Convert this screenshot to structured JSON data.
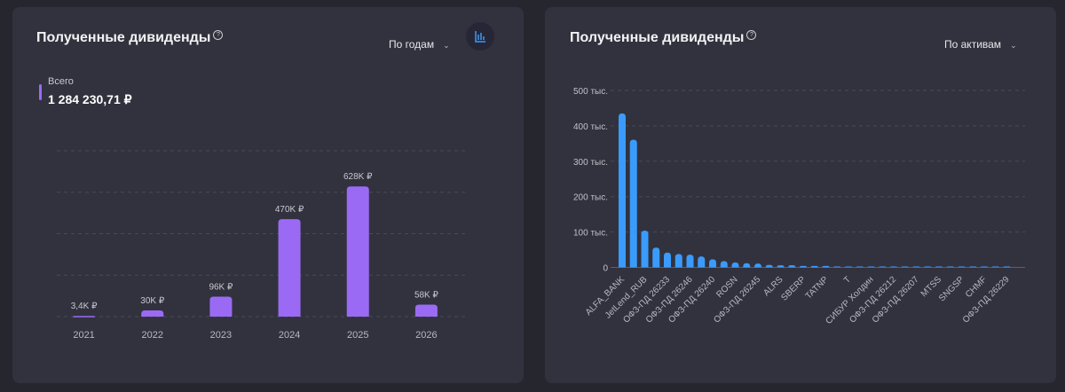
{
  "left_card": {
    "title": "Полученные дивиденды",
    "help_icon": "?",
    "period_select": "По годам",
    "chart_button_icon": "bar-chart-icon",
    "legend": {
      "label": "Всего",
      "value": "1 284 230,71 ₽"
    }
  },
  "right_card": {
    "title": "Полученные дивиденды",
    "help_icon": "?",
    "group_select": "По активам"
  },
  "colors": {
    "purple": "#9b6af5",
    "blue": "#3a9bfc",
    "card": "#32323e",
    "page": "#26262e"
  },
  "chart_data": [
    {
      "type": "bar",
      "title": "Полученные дивиденды",
      "categories": [
        "2021",
        "2022",
        "2023",
        "2024",
        "2025",
        "2026"
      ],
      "values": [
        3400,
        30000,
        96000,
        470000,
        628000,
        58000
      ],
      "data_labels": [
        "3,4K ₽",
        "30K ₽",
        "96K ₽",
        "470K ₽",
        "628K ₽",
        "58K ₽"
      ],
      "ylim": [
        0,
        800000
      ],
      "yticks": [
        0,
        200000,
        400000,
        600000,
        800000
      ],
      "grid": true
    },
    {
      "type": "bar",
      "title": "Полученные дивиденды",
      "categories": [
        "ALFA_BANK",
        "",
        "JetLend_RUB",
        "",
        "ОФЗ-ПД 26233",
        "",
        "ОФЗ-ПД 26246",
        "",
        "ОФЗ-ПД 26240",
        "",
        "ROSN",
        "",
        "ОФЗ-ПД 26245",
        "",
        "ALRS",
        "",
        "SBERP",
        "",
        "TATNP",
        "",
        "T",
        "",
        "СИБУР Холдин",
        "",
        "ОФЗ-ПД 26212",
        "",
        "ОФЗ-ПД 26207",
        "",
        "MTSS",
        "",
        "SNGSP",
        "",
        "CHMF",
        "",
        "ОФЗ-ПД 26229"
      ],
      "values": [
        435,
        361,
        104,
        56,
        42,
        38,
        36,
        31,
        23,
        18,
        14,
        12,
        11,
        7,
        6,
        6,
        4,
        4,
        4,
        2.5,
        1.5,
        1.2,
        1,
        1,
        0.8,
        0.8,
        0.7,
        0.6,
        0.5,
        0.5,
        0.4,
        0.4,
        0.3,
        0.3,
        0.2
      ],
      "value_unit": "тыс. ₽",
      "ylim": [
        0,
        500
      ],
      "yticks": [
        0,
        100,
        200,
        300,
        400,
        500
      ],
      "ytick_labels": [
        "0",
        "100 тыс.",
        "200 тыс.",
        "300 тыс.",
        "400 тыс.",
        "500 тыс."
      ],
      "grid": true
    }
  ]
}
